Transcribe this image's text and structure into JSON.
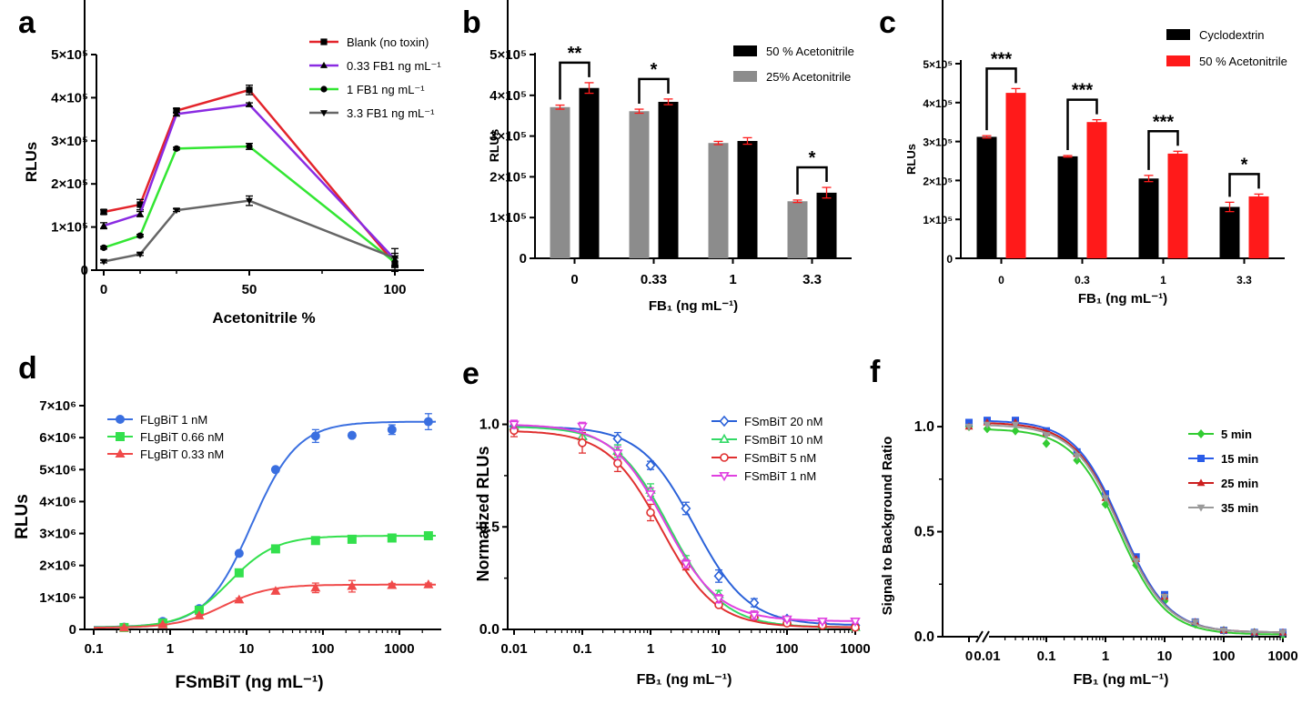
{
  "chart_data": [
    {
      "panel": "a",
      "type": "line",
      "xlabel": "Acetonitrile %",
      "ylabel": "RLUs",
      "xlim": [
        0,
        110
      ],
      "ylim": [
        0,
        500000
      ],
      "xticks": [
        "0",
        "50",
        "100"
      ],
      "xtick_values": [
        0,
        50,
        100
      ],
      "yticks": [
        "0",
        "1×10⁵",
        "2×10⁵",
        "3×10⁵",
        "4×10⁵",
        "5×10⁵"
      ],
      "ytick_values": [
        0,
        100000,
        200000,
        300000,
        400000,
        500000
      ],
      "legend_position": "top-right",
      "series": [
        {
          "name": "Blank (no toxin)",
          "color": "#e3242b",
          "marker": "square",
          "x": [
            0,
            12.5,
            25,
            50,
            100
          ],
          "y": [
            135000,
            152000,
            370000,
            418000,
            15000
          ],
          "err": [
            5000,
            12000,
            5000,
            11000,
            18000
          ]
        },
        {
          "name": "0.33 FB1 ng mL⁻¹",
          "color": "#8a2be2",
          "marker": "triangle-up",
          "x": [
            0,
            12.5,
            25,
            50,
            100
          ],
          "y": [
            103000,
            130000,
            362000,
            384000,
            25000
          ],
          "err": [
            7000,
            6000,
            4000,
            4000,
            14000
          ]
        },
        {
          "name": "1 FB1 ng mL⁻¹",
          "color": "#33e633",
          "marker": "circle",
          "x": [
            0,
            12.5,
            25,
            50,
            100
          ],
          "y": [
            52000,
            80000,
            282000,
            287000,
            18000
          ],
          "err": [
            3000,
            3000,
            3000,
            7000,
            10000
          ]
        },
        {
          "name": "3.3 FB1 ng mL⁻¹",
          "color": "#666666",
          "marker": "triangle-down",
          "x": [
            0,
            12.5,
            25,
            50,
            100
          ],
          "y": [
            20000,
            37000,
            139000,
            161000,
            28000
          ],
          "err": [
            3000,
            3000,
            3000,
            11000,
            22000
          ]
        }
      ]
    },
    {
      "panel": "b",
      "type": "bar",
      "xlabel": "FB₁ (ng mL⁻¹)",
      "ylabel": "RLUs",
      "ylim": [
        0,
        500000
      ],
      "categories": [
        "0",
        "0.33",
        "1",
        "3.3"
      ],
      "yticks": [
        "0",
        "1×10⁵",
        "2×10⁵",
        "3×10⁵",
        "4×10⁵",
        "5×10⁵"
      ],
      "ytick_values": [
        0,
        100000,
        200000,
        300000,
        400000,
        500000
      ],
      "legend_position": "top-right",
      "legend_order": [
        1,
        0
      ],
      "series": [
        {
          "name": "25%   Acetonitrile",
          "color": "#8c8c8c",
          "values": [
            371000,
            361000,
            283000,
            140000
          ],
          "err": [
            5000,
            5000,
            4000,
            3000
          ]
        },
        {
          "name": "50 %  Acetonitrile",
          "color": "#000000",
          "values": [
            418000,
            384000,
            288000,
            161000
          ],
          "err": [
            13000,
            7000,
            8000,
            13000
          ]
        }
      ],
      "significance": [
        "**",
        "*",
        "",
        "*"
      ]
    },
    {
      "panel": "c",
      "type": "bar",
      "xlabel": "FB₁ (ng mL⁻¹)",
      "ylabel": "RLUs",
      "ylim": [
        0,
        500000
      ],
      "categories": [
        "0",
        "0.3",
        "1",
        "3.3"
      ],
      "yticks": [
        "0",
        "1×10⁵",
        "2×10⁵",
        "3×10⁵",
        "4×10⁵",
        "5×10⁵"
      ],
      "ytick_values": [
        0,
        100000,
        200000,
        300000,
        400000,
        500000
      ],
      "legend_position": "top-right",
      "legend_order": [
        0,
        1
      ],
      "series": [
        {
          "name": "Cyclodextrin",
          "color": "#000000",
          "values": [
            312000,
            262000,
            205000,
            132000
          ],
          "err": [
            3000,
            2000,
            8000,
            12000
          ]
        },
        {
          "name": "50 % Acetonitrile",
          "color": "#ff1a1a",
          "values": [
            425000,
            350000,
            269000,
            159000
          ],
          "err": [
            11000,
            6000,
            6000,
            6000
          ]
        }
      ],
      "significance": [
        "***",
        "***",
        "***",
        "*"
      ]
    },
    {
      "panel": "d",
      "type": "scatter",
      "xscale": "log",
      "xlabel": "FSmBiT (ng mL⁻¹)",
      "ylabel": "RLUs",
      "xlim": [
        0.1,
        3000
      ],
      "ylim": [
        0,
        7000000
      ],
      "xticks": [
        "0.1",
        "1",
        "10",
        "100",
        "1000"
      ],
      "xtick_values": [
        0.1,
        1,
        10,
        100,
        1000
      ],
      "yticks": [
        "0",
        "1×10⁶",
        "2×10⁶",
        "3×10⁶",
        "4×10⁶",
        "5×10⁶",
        "6×10⁶",
        "7×10⁶"
      ],
      "ytick_values": [
        0,
        1000000,
        2000000,
        3000000,
        4000000,
        5000000,
        6000000,
        7000000
      ],
      "legend_position": "top-left",
      "series": [
        {
          "name": "FLgBiT  1   nM",
          "color": "#3a6fe0",
          "marker": "circle",
          "x": [
            0.25,
            0.8,
            2.4,
            8,
            24,
            80,
            240,
            800,
            2400
          ],
          "y": [
            70000,
            250000,
            650000,
            2380000,
            5000000,
            6050000,
            6070000,
            6250000,
            6500000
          ],
          "err": [
            30000,
            30000,
            40000,
            50000,
            50000,
            200000,
            50000,
            150000,
            250000
          ]
        },
        {
          "name": "FLgBiT 0.66 nM",
          "color": "#33e04d",
          "marker": "square",
          "x": [
            0.25,
            0.8,
            2.4,
            8,
            24,
            80,
            240,
            800,
            2400
          ],
          "y": [
            60000,
            200000,
            600000,
            1770000,
            2520000,
            2780000,
            2820000,
            2860000,
            2930000
          ],
          "err": [
            20000,
            20000,
            40000,
            50000,
            50000,
            60000,
            60000,
            60000,
            60000
          ]
        },
        {
          "name": "FLgBiT 0.33 nM",
          "color": "#f04a4a",
          "marker": "triangle-up",
          "x": [
            0.25,
            0.8,
            2.4,
            8,
            24,
            80,
            240,
            800,
            2400
          ],
          "y": [
            50000,
            150000,
            430000,
            930000,
            1200000,
            1300000,
            1350000,
            1380000,
            1400000
          ],
          "err": [
            20000,
            20000,
            30000,
            50000,
            60000,
            150000,
            180000,
            60000,
            50000
          ]
        }
      ]
    },
    {
      "panel": "e",
      "type": "scatter",
      "xscale": "log",
      "xlabel": "FB₁ (ng mL⁻¹)",
      "ylabel": "Normalized RLUs",
      "xlim": [
        0.01,
        1000
      ],
      "ylim": [
        0,
        1.1
      ],
      "xticks": [
        "0.01",
        "0.1",
        "1",
        "10",
        "100",
        "1000"
      ],
      "xtick_values": [
        0.01,
        0.1,
        1,
        10,
        100,
        1000
      ],
      "yticks": [
        "0.0",
        "0.5",
        "1.0"
      ],
      "ytick_values": [
        0,
        0.5,
        1.0
      ],
      "legend_position": "top-right",
      "series": [
        {
          "name": "FSmBiT 20 nM",
          "color": "#2b62d9",
          "marker": "diamond-open",
          "x": [
            0.01,
            0.1,
            0.33,
            1,
            3.3,
            10,
            33,
            100,
            330,
            1000
          ],
          "y": [
            0.99,
            0.93,
            0.93,
            0.8,
            0.59,
            0.26,
            0.13,
            0.05,
            0.03,
            0.02
          ],
          "err": [
            0.02,
            0.03,
            0.03,
            0.02,
            0.03,
            0.03,
            0.02,
            0.01,
            0.01,
            0.01
          ]
        },
        {
          "name": "FSmBiT 10 nM",
          "color": "#33d966",
          "marker": "triangle-up-open",
          "x": [
            0.01,
            0.1,
            0.33,
            1,
            3.3,
            10,
            33,
            100,
            330,
            1000
          ],
          "y": [
            0.99,
            0.94,
            0.87,
            0.68,
            0.34,
            0.17,
            0.07,
            0.04,
            0.02,
            0.01
          ],
          "err": [
            0.02,
            0.03,
            0.03,
            0.03,
            0.02,
            0.02,
            0.01,
            0.01,
            0.01,
            0.01
          ]
        },
        {
          "name": "FSmBiT  5  nM",
          "color": "#e03030",
          "marker": "circle-open",
          "x": [
            0.01,
            0.1,
            0.33,
            1,
            3.3,
            10,
            33,
            100,
            330,
            1000
          ],
          "y": [
            0.97,
            0.91,
            0.81,
            0.57,
            0.31,
            0.12,
            0.06,
            0.03,
            0.02,
            0.01
          ],
          "err": [
            0.03,
            0.05,
            0.04,
            0.04,
            0.02,
            0.01,
            0.01,
            0.01,
            0.01,
            0.01
          ]
        },
        {
          "name": "FSmBiT  1  nM",
          "color": "#e040e0",
          "marker": "triangle-down-open",
          "x": [
            0.01,
            0.1,
            0.33,
            1,
            3.3,
            10,
            33,
            100,
            330,
            1000
          ],
          "y": [
            1.0,
            0.99,
            0.86,
            0.66,
            0.32,
            0.15,
            0.07,
            0.05,
            0.04,
            0.04
          ],
          "err": [
            0.02,
            0.02,
            0.03,
            0.03,
            0.02,
            0.02,
            0.02,
            0.01,
            0.01,
            0.01
          ]
        }
      ]
    },
    {
      "panel": "f",
      "type": "scatter",
      "xscale": "log",
      "xlabel": "FB₁ (ng mL⁻¹)",
      "ylabel": "Signal to Background Ratio",
      "xlim": [
        0.01,
        1000
      ],
      "ylim": [
        0,
        1.1
      ],
      "xticks": [
        "0",
        "0.01",
        "0.1",
        "1",
        "10",
        "100",
        "1000"
      ],
      "xtick_values": [
        0,
        0.01,
        0.1,
        1,
        10,
        100,
        1000
      ],
      "yticks": [
        "0.0",
        "0.5",
        "1.0"
      ],
      "ytick_values": [
        0,
        0.5,
        1.0
      ],
      "x_axis_break": true,
      "legend_position": "right",
      "series": [
        {
          "name": "5 min",
          "color": "#33cc33",
          "marker": "diamond",
          "x": [
            0,
            0.01,
            0.03,
            0.1,
            0.33,
            1,
            3.3,
            10,
            33,
            100,
            330,
            1000
          ],
          "y": [
            1.0,
            0.99,
            0.98,
            0.92,
            0.84,
            0.63,
            0.34,
            0.17,
            0.06,
            0.03,
            0.02,
            0.01
          ]
        },
        {
          "name": "15 min",
          "color": "#2a5ce8",
          "marker": "square",
          "x": [
            0,
            0.01,
            0.03,
            0.1,
            0.33,
            1,
            3.3,
            10,
            33,
            100,
            330,
            1000
          ],
          "y": [
            1.02,
            1.03,
            1.03,
            0.98,
            0.88,
            0.68,
            0.38,
            0.2,
            0.07,
            0.03,
            0.02,
            0.02
          ]
        },
        {
          "name": "25 min",
          "color": "#cc1f1f",
          "marker": "triangle-up",
          "x": [
            0,
            0.01,
            0.03,
            0.1,
            0.33,
            1,
            3.3,
            10,
            33,
            100,
            330,
            1000
          ],
          "y": [
            1.0,
            1.02,
            1.02,
            0.97,
            0.87,
            0.66,
            0.37,
            0.19,
            0.07,
            0.03,
            0.02,
            0.02
          ]
        },
        {
          "name": "35 min",
          "color": "#9a9a9a",
          "marker": "triangle-down",
          "x": [
            0,
            0.01,
            0.03,
            0.1,
            0.33,
            1,
            3.3,
            10,
            33,
            100,
            330,
            1000
          ],
          "y": [
            1.0,
            1.01,
            1.01,
            0.96,
            0.86,
            0.66,
            0.36,
            0.19,
            0.07,
            0.03,
            0.02,
            0.02
          ]
        }
      ]
    }
  ]
}
